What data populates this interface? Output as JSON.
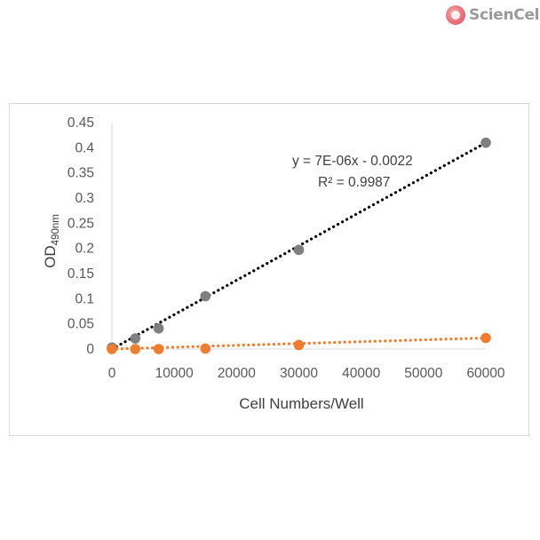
{
  "logo": {
    "text": "ScienCell"
  },
  "chart_data": {
    "type": "scatter",
    "title": "",
    "xlabel": "Cell Numbers/Well",
    "ylabel": {
      "main": "OD",
      "subscript": "490nm"
    },
    "xlim": [
      0,
      60000
    ],
    "ylim": [
      0,
      0.45
    ],
    "x_ticks": [
      0,
      10000,
      20000,
      30000,
      40000,
      50000,
      60000
    ],
    "y_ticks": [
      0,
      0.05,
      0.1,
      0.15,
      0.2,
      0.25,
      0.3,
      0.35,
      0.4,
      0.45
    ],
    "x_tick_labels": [
      "0",
      "10000",
      "20000",
      "30000",
      "40000",
      "50000",
      "60000"
    ],
    "y_tick_labels": [
      "0",
      "0.05",
      "0.1",
      "0.15",
      "0.2",
      "0.25",
      "0.3",
      "0.35",
      "0.4",
      "0.45"
    ],
    "grid": false,
    "legend": "none",
    "series": [
      {
        "color": "#7f7f7f",
        "trendline_color": "#000000",
        "points": [
          {
            "x": 0,
            "y": 0.003
          },
          {
            "x": 3750,
            "y": 0.021
          },
          {
            "x": 7500,
            "y": 0.041
          },
          {
            "x": 15000,
            "y": 0.105
          },
          {
            "x": 30000,
            "y": 0.197
          },
          {
            "x": 60000,
            "y": 0.41
          }
        ],
        "trendline": {
          "x": [
            0,
            60000
          ],
          "y": [
            0,
            0.41
          ]
        }
      },
      {
        "color": "#ed7d31",
        "trendline_color": "#ed7d31",
        "points": [
          {
            "x": 0,
            "y": 0.0
          },
          {
            "x": 3750,
            "y": 0.0
          },
          {
            "x": 7500,
            "y": 0.0
          },
          {
            "x": 15000,
            "y": 0.001
          },
          {
            "x": 30000,
            "y": 0.008
          },
          {
            "x": 60000,
            "y": 0.022
          }
        ],
        "trendline": {
          "x": [
            0,
            60000
          ],
          "y": [
            0,
            0.022
          ]
        }
      }
    ],
    "annotations": [
      {
        "text": "y = 7E-06x - 0.0022"
      },
      {
        "text": "R² = 0.9987"
      }
    ]
  }
}
